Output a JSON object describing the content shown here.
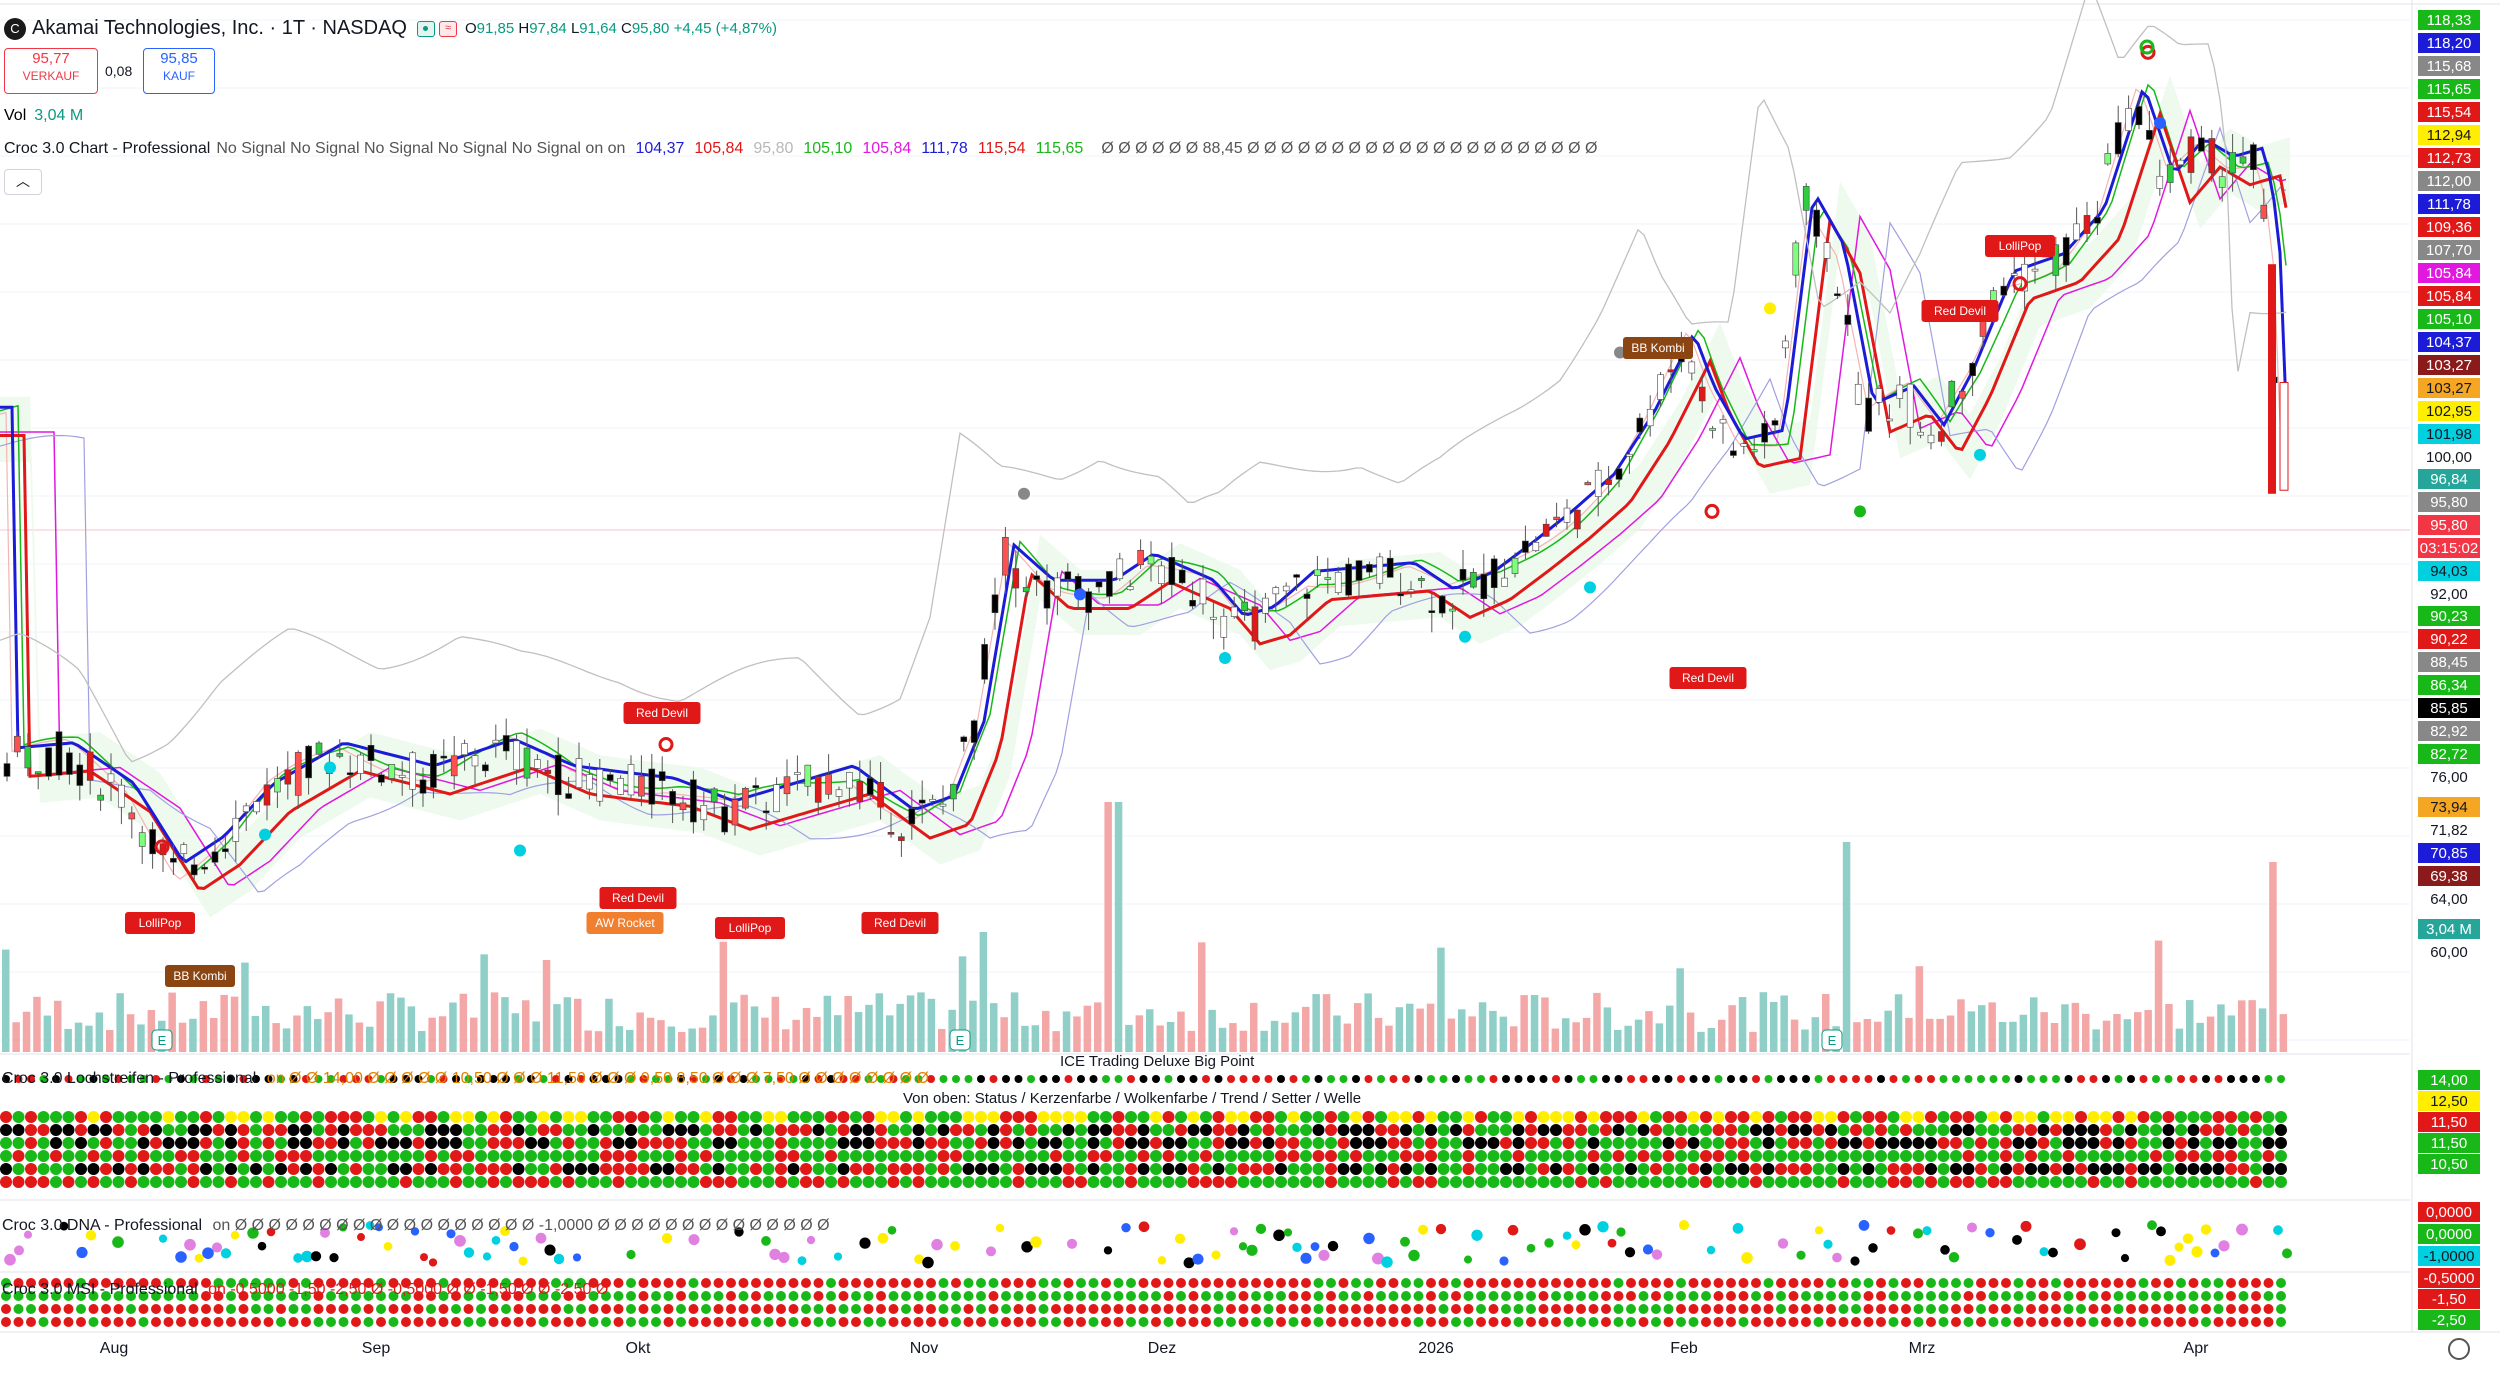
{
  "header": {
    "symbol_title": "Akamai Technologies, Inc. · 1T · NASDAQ",
    "ohlc": {
      "o_label": "O",
      "o": "91,85",
      "h_label": "H",
      "h": "97,84",
      "l_label": "L",
      "l": "91,64",
      "c_label": "C",
      "c": "95,80",
      "change": "+4,45 (+4,87%)"
    },
    "sell_price": "95,77",
    "sell_label": "VERKAUF",
    "spread": "0,08",
    "buy_price": "95,85",
    "buy_label": "KAUF",
    "vol_label": "Vol",
    "vol_value": "3,04 M",
    "collapse_icon": "chevron-up-icon"
  },
  "indicator_main": {
    "name": "Croc 3.0 Chart - Professional",
    "signals": "No Signal No Signal No Signal No Signal No Signal on on",
    "values": [
      {
        "v": "104,37",
        "color": "#1c1cd8"
      },
      {
        "v": "105,84",
        "color": "#e01818"
      },
      {
        "v": "95,80",
        "color": "#b8b8b8"
      },
      {
        "v": "105,10",
        "color": "#18b818"
      },
      {
        "v": "105,84",
        "color": "#e018e0"
      },
      {
        "v": "111,78",
        "color": "#1c1cd8"
      },
      {
        "v": "115,54",
        "color": "#e01818"
      },
      {
        "v": "115,65",
        "color": "#18b818"
      }
    ],
    "tail": "Ø Ø Ø Ø Ø Ø 88,45 Ø Ø Ø Ø Ø Ø Ø Ø Ø Ø Ø Ø Ø Ø Ø Ø Ø Ø Ø Ø Ø"
  },
  "colors": {
    "up": "#089981",
    "down": "#f23645",
    "blue": "#1c1cd8",
    "red": "#e01818",
    "green": "#18b818",
    "magenta": "#e018e0",
    "grey": "#b0b0b0"
  },
  "axis_labels": [
    {
      "t": "118,33",
      "bg": "#18b818",
      "fg": "#ffffff"
    },
    {
      "t": "118,20",
      "bg": "#1c1cd8",
      "fg": "#ffffff"
    },
    {
      "t": "115,68",
      "bg": "#888888",
      "fg": "#ffffff"
    },
    {
      "t": "115,65",
      "bg": "#18b818",
      "fg": "#ffffff"
    },
    {
      "t": "115,54",
      "bg": "#e01818",
      "fg": "#ffffff"
    },
    {
      "t": "112,94",
      "bg": "#ffee00",
      "fg": "#131722"
    },
    {
      "t": "112,73",
      "bg": "#e01818",
      "fg": "#ffffff"
    },
    {
      "t": "112,00",
      "bg": "#888888",
      "fg": "#ffffff"
    },
    {
      "t": "111,78",
      "bg": "#1c1cd8",
      "fg": "#ffffff"
    },
    {
      "t": "109,36",
      "bg": "#e01818",
      "fg": "#ffffff"
    },
    {
      "t": "107,70",
      "bg": "#888888",
      "fg": "#ffffff"
    },
    {
      "t": "105,84",
      "bg": "#e018e0",
      "fg": "#ffffff"
    },
    {
      "t": "105,84",
      "bg": "#e01818",
      "fg": "#ffffff"
    },
    {
      "t": "105,10",
      "bg": "#18b818",
      "fg": "#ffffff"
    },
    {
      "t": "104,37",
      "bg": "#1c1cd8",
      "fg": "#ffffff"
    },
    {
      "t": "103,27",
      "bg": "#8b1a1a",
      "fg": "#ffffff"
    },
    {
      "t": "103,27",
      "bg": "#f5a623",
      "fg": "#131722"
    },
    {
      "t": "102,95",
      "bg": "#ffee00",
      "fg": "#131722"
    },
    {
      "t": "101,98",
      "bg": "#00d0e0",
      "fg": "#131722"
    },
    {
      "t": "100,00",
      "bg": "",
      "fg": "#131722"
    },
    {
      "t": "96,84",
      "bg": "#26a69a",
      "fg": "#ffffff"
    },
    {
      "t": "95,80",
      "bg": "#888888",
      "fg": "#ffffff"
    },
    {
      "t": "95,80",
      "bg": "#f23645",
      "fg": "#ffffff"
    },
    {
      "t": "03:15:02",
      "bg": "#f23645",
      "fg": "#ffffff"
    },
    {
      "t": "94,03",
      "bg": "#00d0e0",
      "fg": "#131722"
    },
    {
      "t": "92,00",
      "bg": "",
      "fg": "#131722"
    },
    {
      "t": "90,23",
      "bg": "#18b818",
      "fg": "#ffffff"
    },
    {
      "t": "90,22",
      "bg": "#e01818",
      "fg": "#ffffff"
    },
    {
      "t": "88,45",
      "bg": "#888888",
      "fg": "#ffffff"
    },
    {
      "t": "86,34",
      "bg": "#18b818",
      "fg": "#ffffff"
    },
    {
      "t": "85,85",
      "bg": "#000000",
      "fg": "#ffffff"
    },
    {
      "t": "82,92",
      "bg": "#888888",
      "fg": "#ffffff"
    },
    {
      "t": "82,72",
      "bg": "#18b818",
      "fg": "#ffffff"
    },
    {
      "t": "76,00",
      "bg": "",
      "fg": "#131722"
    },
    {
      "t": "73,94",
      "bg": "#f5a623",
      "fg": "#131722"
    },
    {
      "t": "71,82",
      "bg": "",
      "fg": "#131722"
    },
    {
      "t": "70,85",
      "bg": "#1c1cd8",
      "fg": "#ffffff"
    },
    {
      "t": "69,38",
      "bg": "#8b1a1a",
      "fg": "#ffffff"
    },
    {
      "t": "64,00",
      "bg": "",
      "fg": "#131722"
    },
    {
      "t": "3,04 M",
      "bg": "#26a69a",
      "fg": "#ffffff"
    },
    {
      "t": "60,00",
      "bg": "",
      "fg": "#131722"
    }
  ],
  "sub_axis_labels": [
    {
      "t": "14,00",
      "bg": "#18b818",
      "fg": "#ffffff"
    },
    {
      "t": "12,50",
      "bg": "#ffee00",
      "fg": "#131722"
    },
    {
      "t": "11,50",
      "bg": "#e01818",
      "fg": "#ffffff"
    },
    {
      "t": "11,50",
      "bg": "#18b818",
      "fg": "#ffffff"
    },
    {
      "t": "10,50",
      "bg": "#18b818",
      "fg": "#ffffff"
    },
    {
      "t": "0,0000",
      "bg": "#e01818",
      "fg": "#ffffff"
    },
    {
      "t": "0,0000",
      "bg": "#18b818",
      "fg": "#ffffff"
    },
    {
      "t": "-1,0000",
      "bg": "#00d0e0",
      "fg": "#131722"
    },
    {
      "t": "-0,5000",
      "bg": "#e01818",
      "fg": "#ffffff"
    },
    {
      "t": "-1,50",
      "bg": "#e01818",
      "fg": "#ffffff"
    },
    {
      "t": "-2,50",
      "bg": "#18b818",
      "fg": "#ffffff"
    }
  ],
  "x_labels": [
    "Aug",
    "Sep",
    "Okt",
    "Nov",
    "Dez",
    "2026",
    "Feb",
    "Mrz",
    "Apr"
  ],
  "signal_labels": [
    {
      "t": "LolliPop",
      "bg": "#e01818"
    },
    {
      "t": "BB Kombi",
      "bg": "#8b4513"
    },
    {
      "t": "Red Devil",
      "bg": "#e01818"
    },
    {
      "t": "Red Devil",
      "bg": "#e01818"
    },
    {
      "t": "AW Rocket",
      "bg": "#f08030"
    },
    {
      "t": "LolliPop",
      "bg": "#e01818"
    },
    {
      "t": "Red Devil",
      "bg": "#e01818"
    },
    {
      "t": "BB Kombi",
      "bg": "#8b4513"
    },
    {
      "t": "Red Devil",
      "bg": "#e01818"
    },
    {
      "t": "Red Devil",
      "bg": "#e01818"
    },
    {
      "t": "LolliPop",
      "bg": "#e01818"
    }
  ],
  "earnings_marker": "E",
  "sub_panels": {
    "lochstreifen_name": "Croc 3.0 Lochstreifen - Professional",
    "lochstreifen_vals": "on Ø Ø 14,00 Ø Ø Ø Ø Ø 10,50 Ø Ø Ø 11,50 Ø Ø Ø 9,50 8,50 Ø Ø Ø 7,50 Ø Ø Ø Ø Ø Ø Ø Ø",
    "center_title": "ICE Trading Deluxe Big Point",
    "center_sub": "Von oben: Status / Kerzenfarbe / Wolkenfarbe / Trend / Setter / Welle",
    "dna_name": "Croc 3.0 DNA - Professional",
    "dna_vals": "on Ø Ø Ø Ø Ø Ø Ø Ø Ø Ø Ø Ø Ø Ø Ø Ø Ø Ø -1,0000 Ø Ø Ø Ø Ø Ø Ø Ø Ø Ø Ø Ø Ø Ø",
    "msi_name": "Croc 3.0 MSI - Professional",
    "msi_vals": "on -0,5000 -1,50 -2,50 Ø -0,5000 Ø Ø -1,50 Ø Ø -2,50 Ø"
  },
  "settings_icon": "gear-icon"
}
